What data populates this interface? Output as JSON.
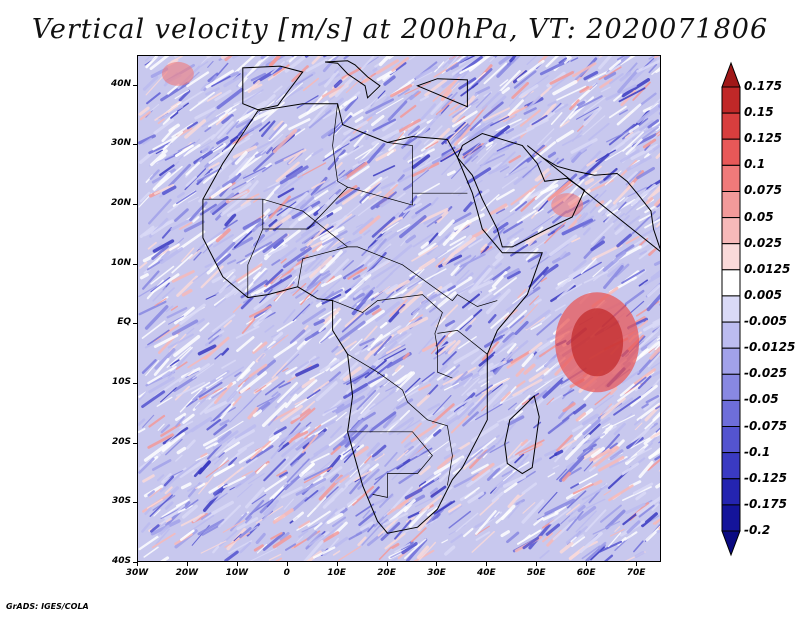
{
  "title": "Vertical velocity [m/s] at 200hPa, VT: 2020071806",
  "credit": "GrADS: IGES/COLA",
  "map": {
    "region": "Africa and surrounding oceans",
    "lon_range": [
      -30,
      75
    ],
    "lat_range": [
      -40,
      45
    ],
    "lat_ticks": [
      "40N",
      "30N",
      "20N",
      "10N",
      "EQ",
      "10S",
      "20S",
      "30S",
      "40S"
    ],
    "lon_ticks": [
      "30W",
      "20W",
      "10W",
      "0",
      "10E",
      "20E",
      "30E",
      "40E",
      "50E",
      "60E",
      "70E"
    ],
    "background_color": "#c8c8ee",
    "coastline_color": "#000000"
  },
  "colorbar": {
    "labels": [
      "0.175",
      "0.15",
      "0.125",
      "0.1",
      "0.075",
      "0.05",
      "0.025",
      "0.0125",
      "0.005",
      "-0.005",
      "-0.0125",
      "-0.025",
      "-0.05",
      "-0.075",
      "-0.1",
      "-0.125",
      "-0.175",
      "-0.2"
    ],
    "colors": [
      "#a01818",
      "#c02828",
      "#d83e3e",
      "#e85858",
      "#f07a7a",
      "#f39a9a",
      "#f7b9b9",
      "#fadada",
      "#ffffff",
      "#dadaf7",
      "#bcbcf0",
      "#a2a2ea",
      "#8888e2",
      "#6e6eda",
      "#5454d0",
      "#3a3ac2",
      "#2424b0",
      "#14149a",
      "#0a0a82"
    ]
  },
  "chart_data": {
    "type": "heatmap",
    "variable": "Vertical velocity",
    "units": "m/s",
    "level": "200hPa",
    "valid_time": "2020071806",
    "x_range_deg_lon": [
      -30,
      75
    ],
    "y_range_deg_lat": [
      -40,
      45
    ],
    "contour_levels": [
      -0.2,
      -0.175,
      -0.125,
      -0.1,
      -0.075,
      -0.05,
      -0.025,
      -0.0125,
      -0.005,
      0.005,
      0.0125,
      0.025,
      0.05,
      0.075,
      0.1,
      0.125,
      0.15,
      0.175
    ],
    "notable_features": [
      {
        "label": "Strong ascent (red) over western Indian Ocean",
        "lon": 62,
        "lat": -3
      },
      {
        "label": "Ascent near Gulf of Aden",
        "lon": 56,
        "lat": 20
      },
      {
        "label": "Ascent patch over North Atlantic",
        "lon": -22,
        "lat": 42
      }
    ]
  }
}
